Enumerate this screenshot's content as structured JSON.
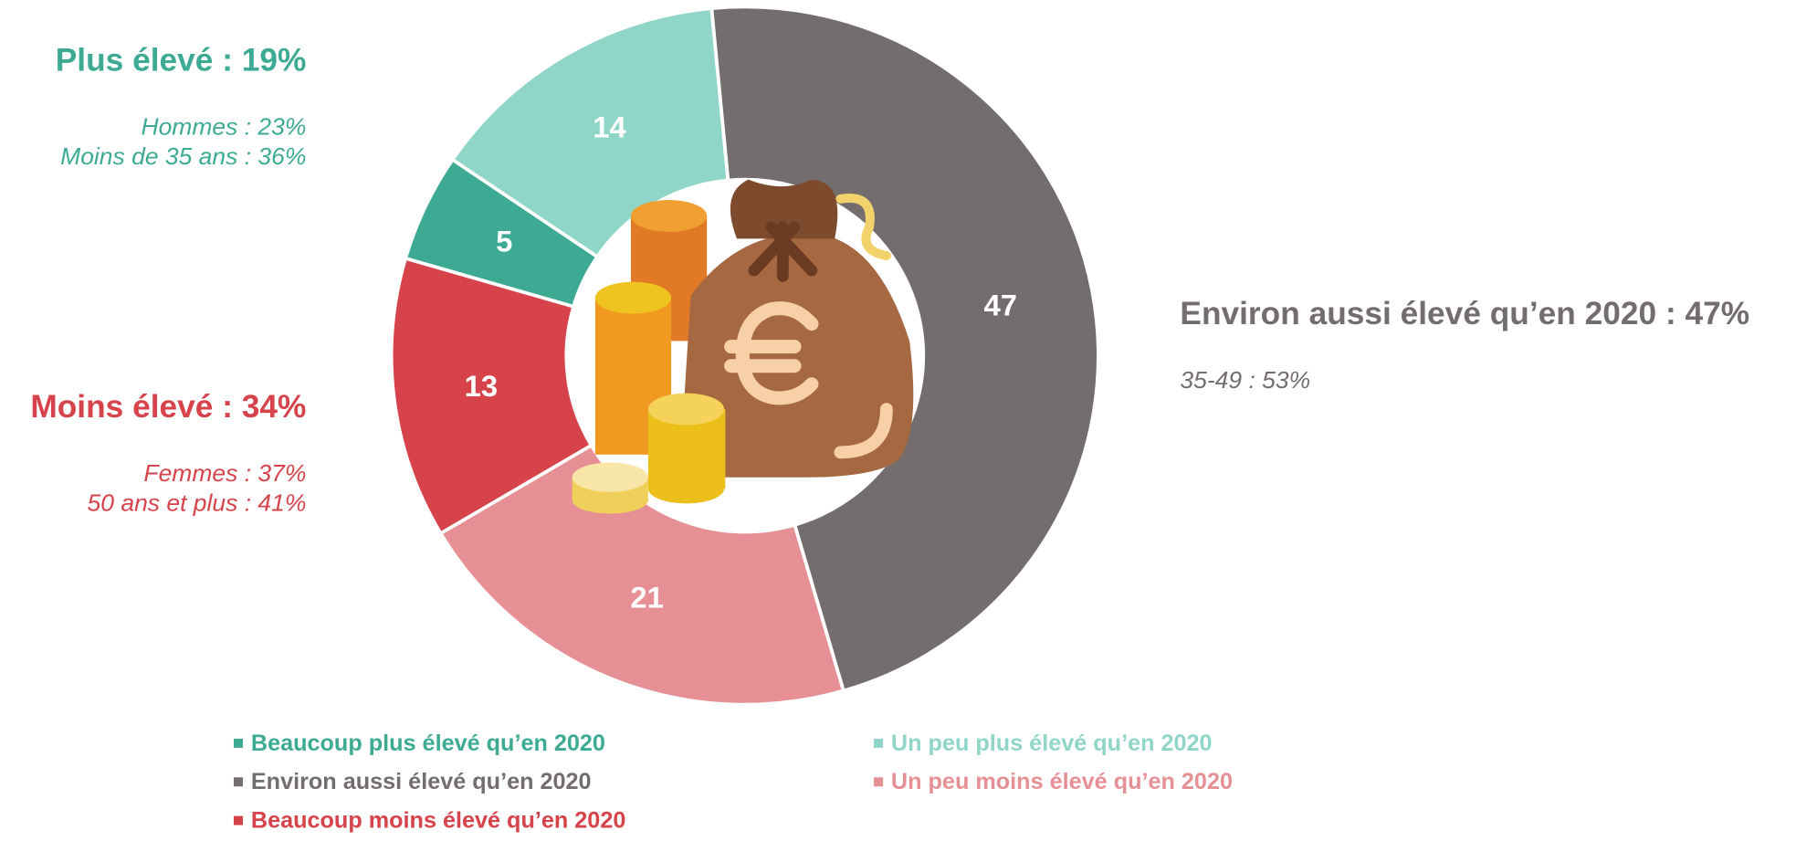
{
  "chart_data": {
    "type": "donut",
    "categories": [
      "Beaucoup plus élevé qu’en 2020",
      "Un peu plus élevé qu’en 2020",
      "Environ aussi élevé qu’en 2020",
      "Un peu moins élevé qu’en 2020",
      "Beaucoup moins élevé qu’en 2020"
    ],
    "values": [
      5,
      14,
      47,
      21,
      13
    ],
    "colors": [
      "#3dab94",
      "#8fd6c8",
      "#736e6d",
      "#e68f94",
      "#d6434b"
    ],
    "legend": "bottom",
    "annotations": [
      {
        "title": "Plus élevé : 19%",
        "details": [
          "Hommes : 23%",
          "Moins de 35 ans : 36%"
        ],
        "color": "#3dab94"
      },
      {
        "title": "Moins élevé : 34%",
        "details": [
          "Femmes : 37%",
          "50 ans et plus : 41%"
        ],
        "color": "#d6434b"
      },
      {
        "title": "Environ aussi élevé qu’en 2020 : 47%",
        "details": [
          "35-49 : 53%"
        ],
        "color": "#736e6d"
      }
    ]
  }
}
